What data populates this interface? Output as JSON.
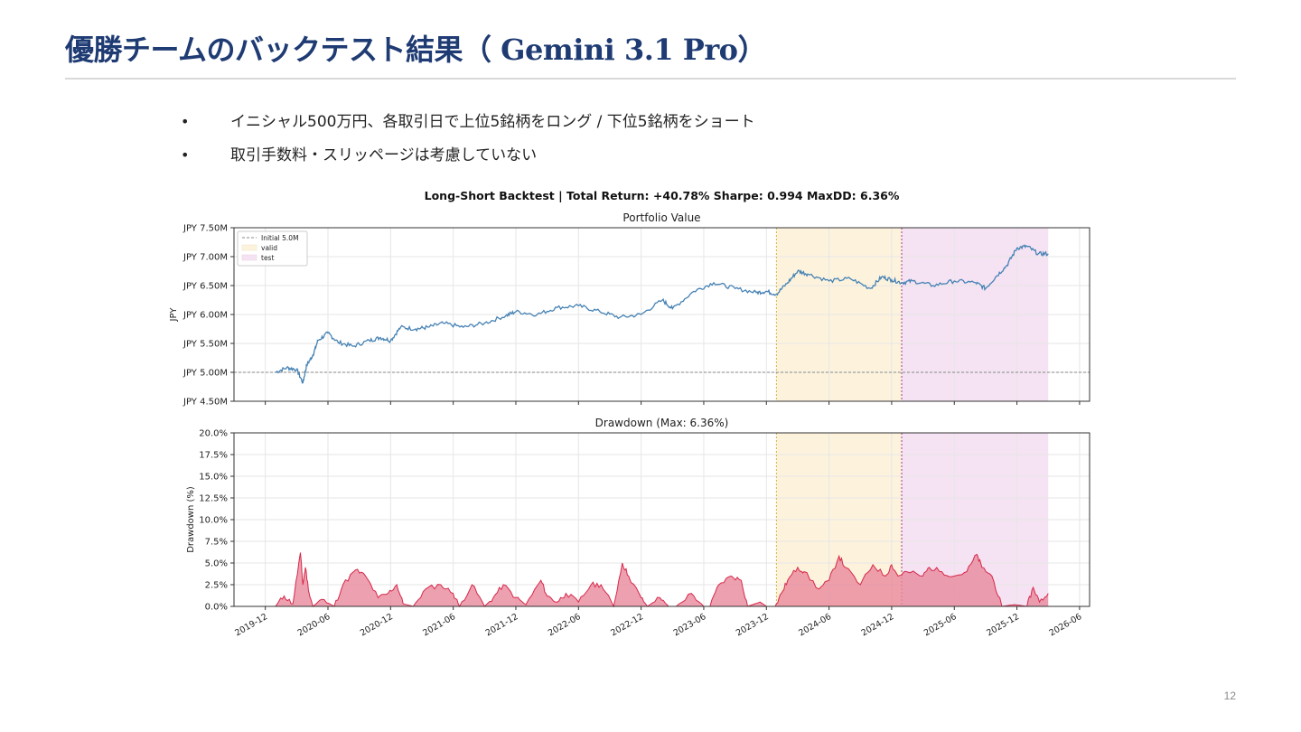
{
  "slide": {
    "title": "優勝チームのバックテスト結果（ Gemini 3.1 Pro）",
    "bullets": [
      "イニシャル500万円、各取引日で上位5銘柄をロング / 下位5銘柄をショート",
      "取引手数料・スリッページは考慮していない"
    ],
    "bullet_symbol": "•",
    "page_number": "12"
  },
  "colors": {
    "title": "#1f3b73",
    "portfolio_line": "#4682b4",
    "drawdown_fill": "#e8889c",
    "drawdown_line": "#d6284a",
    "valid_region": "#fdf3dd",
    "test_region": "#f5e3f3",
    "initial_line": "#888888",
    "valid_divider": "#d4b33a",
    "test_divider": "#a13c8c"
  },
  "chart_data": [
    {
      "type": "line",
      "suptitle": "Long-Short Backtest  |  Total Return: +40.78%  Sharpe: 0.994  MaxDD: 6.36%",
      "title": "Portfolio Value",
      "ylabel": "JPY",
      "xlabel": "",
      "ylim": [
        4.5,
        7.5
      ],
      "yticks": [
        4.5,
        5.0,
        5.5,
        6.0,
        6.5,
        7.0,
        7.5
      ],
      "ytick_labels": [
        "JPY 4.50M",
        "JPY 5.00M",
        "JPY 5.50M",
        "JPY 6.00M",
        "JPY 6.50M",
        "JPY 7.00M",
        "JPY 7.50M"
      ],
      "xlim": [
        2019.75,
        2026.58
      ],
      "initial_value": 5.0,
      "legend": [
        "Initial 5.0M",
        "valid",
        "test"
      ],
      "legend_position": "upper-left",
      "grid": true,
      "regions": [
        {
          "name": "valid",
          "start": 2024.08,
          "end": 2025.08
        },
        {
          "name": "test",
          "start": 2025.08,
          "end": 2026.25
        }
      ],
      "series": [
        {
          "name": "Portfolio Value (JPY M)",
          "x": [
            2020.08,
            2020.17,
            2020.25,
            2020.3,
            2020.33,
            2020.38,
            2020.42,
            2020.5,
            2020.58,
            2020.7,
            2020.83,
            2020.92,
            2021.0,
            2021.08,
            2021.2,
            2021.3,
            2021.42,
            2021.58,
            2021.75,
            2021.92,
            2022.0,
            2022.17,
            2022.33,
            2022.5,
            2022.67,
            2022.83,
            2023.0,
            2023.17,
            2023.25,
            2023.42,
            2023.58,
            2023.75,
            2023.92,
            2024.0,
            2024.08,
            2024.17,
            2024.25,
            2024.33,
            2024.5,
            2024.67,
            2024.83,
            2024.92,
            2025.0,
            2025.08,
            2025.17,
            2025.33,
            2025.5,
            2025.67,
            2025.75,
            2025.83,
            2025.92,
            2026.0,
            2026.08,
            2026.17,
            2026.25
          ],
          "values": [
            5.0,
            5.08,
            5.05,
            4.82,
            5.12,
            5.3,
            5.55,
            5.68,
            5.52,
            5.45,
            5.55,
            5.6,
            5.55,
            5.78,
            5.75,
            5.78,
            5.85,
            5.78,
            5.85,
            5.98,
            6.05,
            6.0,
            6.12,
            6.15,
            6.05,
            5.95,
            6.0,
            6.25,
            6.1,
            6.4,
            6.55,
            6.45,
            6.38,
            6.4,
            6.35,
            6.55,
            6.75,
            6.7,
            6.58,
            6.62,
            6.45,
            6.65,
            6.6,
            6.55,
            6.58,
            6.5,
            6.58,
            6.55,
            6.45,
            6.65,
            6.85,
            7.15,
            7.18,
            7.05,
            7.05
          ]
        }
      ]
    },
    {
      "type": "area",
      "title": "Drawdown  (Max: 6.36%)",
      "ylabel": "Drawdown (%)",
      "xlabel": "",
      "ylim": [
        0,
        20
      ],
      "yticks": [
        0,
        2.5,
        5,
        7.5,
        10,
        12.5,
        15,
        17.5,
        20
      ],
      "ytick_labels": [
        "0.0%",
        "2.5%",
        "5.0%",
        "7.5%",
        "10.0%",
        "12.5%",
        "15.0%",
        "17.5%",
        "20.0%"
      ],
      "xlim": [
        2019.75,
        2026.58
      ],
      "xticks": [
        2020.0,
        2020.5,
        2021.0,
        2021.5,
        2022.0,
        2022.5,
        2023.0,
        2023.5,
        2024.0,
        2024.5,
        2025.0,
        2025.5,
        2026.0,
        2026.5
      ],
      "xtick_labels": [
        "2019-12",
        "2020-06",
        "2020-12",
        "2021-06",
        "2021-12",
        "2022-06",
        "2022-12",
        "2023-06",
        "2023-12",
        "2024-06",
        "2024-12",
        "2025-06",
        "2025-12",
        "2026-06"
      ],
      "grid": true,
      "regions": [
        {
          "name": "valid",
          "start": 2024.08,
          "end": 2025.08
        },
        {
          "name": "test",
          "start": 2025.08,
          "end": 2026.25
        }
      ],
      "series": [
        {
          "name": "Drawdown (%)",
          "x": [
            2020.08,
            2020.15,
            2020.22,
            2020.28,
            2020.3,
            2020.32,
            2020.35,
            2020.38,
            2020.45,
            2020.55,
            2020.62,
            2020.72,
            2020.8,
            2020.9,
            2020.98,
            2021.05,
            2021.1,
            2021.18,
            2021.28,
            2021.4,
            2021.5,
            2021.55,
            2021.65,
            2021.75,
            2021.82,
            2021.9,
            2022.0,
            2022.08,
            2022.2,
            2022.25,
            2022.33,
            2022.4,
            2022.5,
            2022.6,
            2022.68,
            2022.78,
            2022.85,
            2022.9,
            2023.0,
            2023.05,
            2023.15,
            2023.22,
            2023.28,
            2023.4,
            2023.5,
            2023.55,
            2023.62,
            2023.72,
            2023.8,
            2023.85,
            2023.95,
            2024.0,
            2024.03,
            2024.07,
            2024.12,
            2024.17,
            2024.25,
            2024.3,
            2024.42,
            2024.5,
            2024.58,
            2024.63,
            2024.75,
            2024.85,
            2024.95,
            2025.0,
            2025.05,
            2025.12,
            2025.25,
            2025.3,
            2025.4,
            2025.5,
            2025.6,
            2025.68,
            2025.72,
            2025.8,
            2025.88,
            2025.98,
            2026.08,
            2026.13,
            2026.18,
            2026.25
          ],
          "values": [
            0.0,
            1.2,
            0.3,
            6.2,
            2.5,
            4.5,
            1.5,
            0.0,
            0.8,
            0.0,
            2.5,
            4.2,
            3.5,
            1.0,
            1.5,
            2.5,
            0.3,
            0.0,
            2.0,
            2.5,
            1.5,
            0.0,
            2.5,
            0.0,
            1.0,
            2.5,
            1.0,
            0.2,
            3.0,
            1.2,
            0.5,
            1.5,
            0.5,
            2.5,
            2.5,
            0.0,
            5.0,
            3.5,
            1.0,
            0.0,
            1.0,
            0.0,
            0.0,
            1.5,
            0.0,
            0.0,
            2.5,
            3.5,
            3.0,
            0.0,
            0.5,
            0.0,
            0.0,
            0.0,
            1.5,
            3.0,
            4.5,
            4.0,
            2.0,
            3.0,
            5.8,
            4.5,
            2.5,
            4.8,
            3.5,
            4.8,
            3.5,
            4.0,
            3.5,
            4.5,
            4.0,
            3.5,
            4.0,
            6.0,
            4.5,
            3.5,
            0.0,
            0.2,
            0.0,
            2.2,
            0.5,
            1.5
          ]
        }
      ]
    }
  ]
}
